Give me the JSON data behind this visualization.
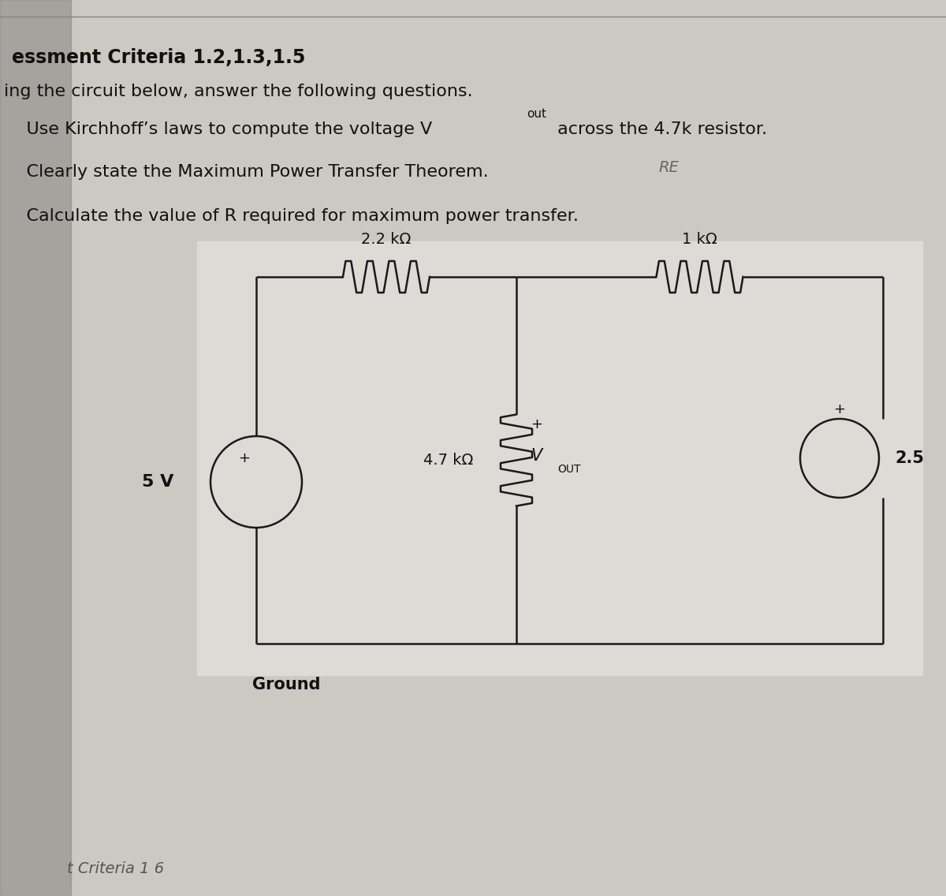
{
  "bg_left_shadow": "#b8b4ae",
  "bg_color": "#ccc9c3",
  "paper_color": "#e2dedb",
  "title_line1": "essment Criteria 1.2,1.3,1.5",
  "title_line2": "ing the circuit below, answer the following questions.",
  "q1a": "    Use Kirchhoff’s laws to compute the voltage V",
  "q1_sub": "out",
  "q1b": " across the 4.7k resistor.",
  "q2": "    Clearly state the Maximum Power Transfer Theorem.",
  "q2_annot": "RE",
  "q3": "    Calculate the value of R required for maximum power transfer.",
  "r1_label": "2.2 kΩ",
  "r2_label": "1 kΩ",
  "r3_label": "4.7 kΩ",
  "vout_v": "V",
  "vout_sub": "OUT",
  "v1_label": "5 V",
  "v2_label": "2.5",
  "plus": "+",
  "ground_label": "Ground",
  "bottom_text": "t Criteria 1 6",
  "line_color": "#1a1a1a",
  "text_color": "#111111",
  "annot_color": "#666666"
}
